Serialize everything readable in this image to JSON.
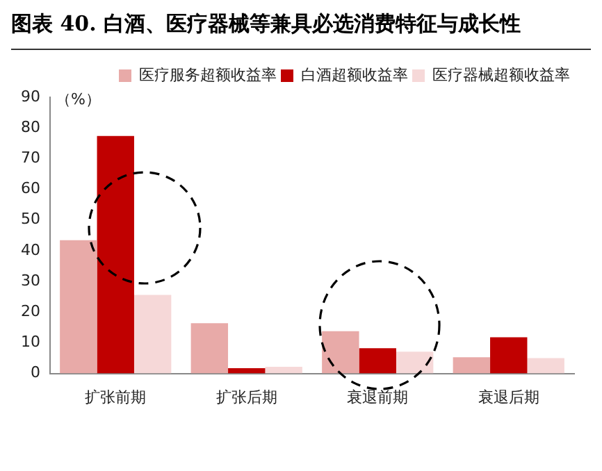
{
  "chart_data": {
    "type": "bar",
    "title": "图表 40. 白酒、医疗器械等兼具必选消费特征与成长性",
    "ylabel": "（%）",
    "categories": [
      "扩张前期",
      "扩张后期",
      "衰退前期",
      "衰退后期"
    ],
    "series": [
      {
        "name": "医疗服务超额收益率",
        "color": "#e8aaa8",
        "values": [
          43.4,
          16.4,
          13.8,
          5.3
        ]
      },
      {
        "name": "白酒超额收益率",
        "color": "#c00000",
        "values": [
          77.4,
          1.7,
          8.2,
          11.8
        ]
      },
      {
        "name": "医疗器械超额收益率",
        "color": "#f6d8d8",
        "values": [
          25.6,
          2.2,
          7.1,
          5
        ]
      }
    ],
    "ylim": [
      0,
      90
    ],
    "yticks": [
      0,
      10,
      20,
      30,
      40,
      50,
      60,
      70,
      80,
      90
    ],
    "grid": false,
    "legend": "top"
  }
}
